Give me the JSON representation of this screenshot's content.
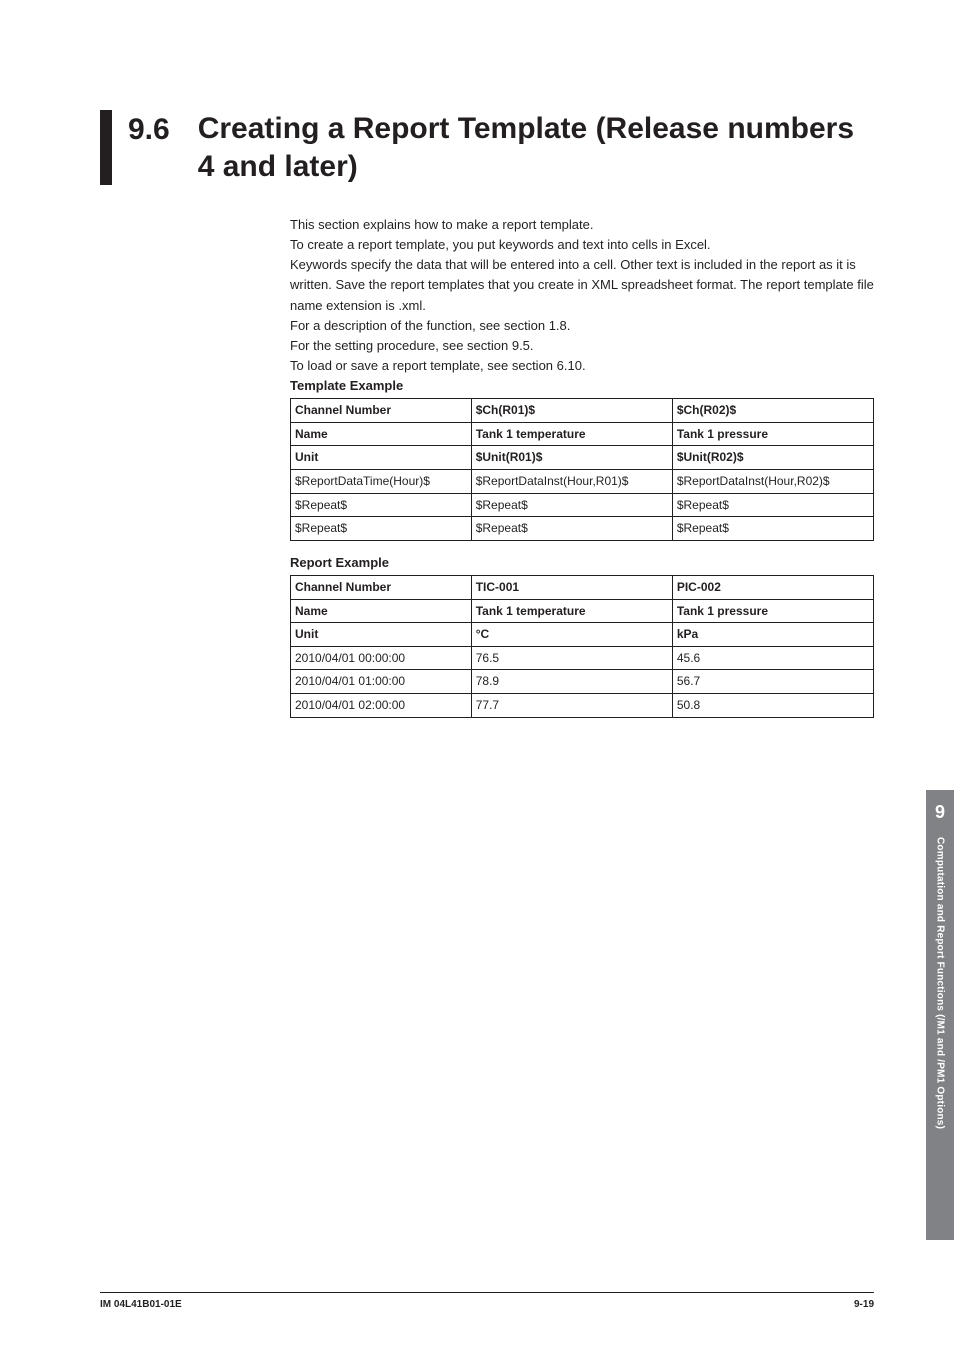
{
  "heading": {
    "number": "9.6",
    "title_line1": "Creating a Report Template (Release numbers",
    "title_line2": "4 and later)"
  },
  "body": {
    "p1": "This section explains how to make a report template.",
    "p2": "To create a report template, you put keywords and text into cells in Excel.",
    "p3": "Keywords specify the data that will be entered into a cell. Other text is included in the report as it is written. Save the report templates that you create in XML spreadsheet format. The report template file name extension is .xml.",
    "p4": "For a description of the function, see section 1.8.",
    "p5": "For the setting procedure, see section 9.5.",
    "p6": "To load or save a report template, see section 6.10.",
    "template_heading": "Template Example",
    "report_heading": "Report Example"
  },
  "template_table": {
    "r0": {
      "c0": "Channel Number",
      "c1": "$Ch(R01)$",
      "c2": "$Ch(R02)$"
    },
    "r1": {
      "c0": "Name",
      "c1": "Tank 1 temperature",
      "c2": "Tank 1 pressure"
    },
    "r2": {
      "c0": "Unit",
      "c1": "$Unit(R01)$",
      "c2": "$Unit(R02)$"
    },
    "r3": {
      "c0": "$ReportDataTime(Hour)$",
      "c1": "$ReportDataInst(Hour,R01)$",
      "c2": "$ReportDataInst(Hour,R02)$"
    },
    "r4": {
      "c0": "$Repeat$",
      "c1": " $Repeat$",
      "c2": "$Repeat$"
    },
    "r5": {
      "c0": "$Repeat$",
      "c1": "$Repeat$",
      "c2": " $Repeat$"
    }
  },
  "report_table": {
    "r0": {
      "c0": "Channel Number",
      "c1": "TIC-001",
      "c2": "PIC-002"
    },
    "r1": {
      "c0": "Name",
      "c1": "Tank 1 temperature",
      "c2": "Tank 1 pressure"
    },
    "r2": {
      "c0": "Unit",
      "c1": "°C",
      "c2": "kPa"
    },
    "r3": {
      "c0": "2010/04/01 00:00:00",
      "c1": "76.5",
      "c2": "45.6"
    },
    "r4": {
      "c0": "2010/04/01 01:00:00",
      "c1": "78.9",
      "c2": "56.7"
    },
    "r5": {
      "c0": "2010/04/01 02:00:00",
      "c1": "77.7",
      "c2": "50.8"
    }
  },
  "sidebar": {
    "chapter": "9",
    "label": "Computation and Report Functions (/M1 and /PM1 Options)"
  },
  "footer": {
    "left": "IM 04L41B01-01E",
    "right": "9-19"
  },
  "colors": {
    "text": "#231f20",
    "sidebar_bg": "#808285",
    "sidebar_fg": "#ffffff",
    "page_bg": "#ffffff"
  }
}
